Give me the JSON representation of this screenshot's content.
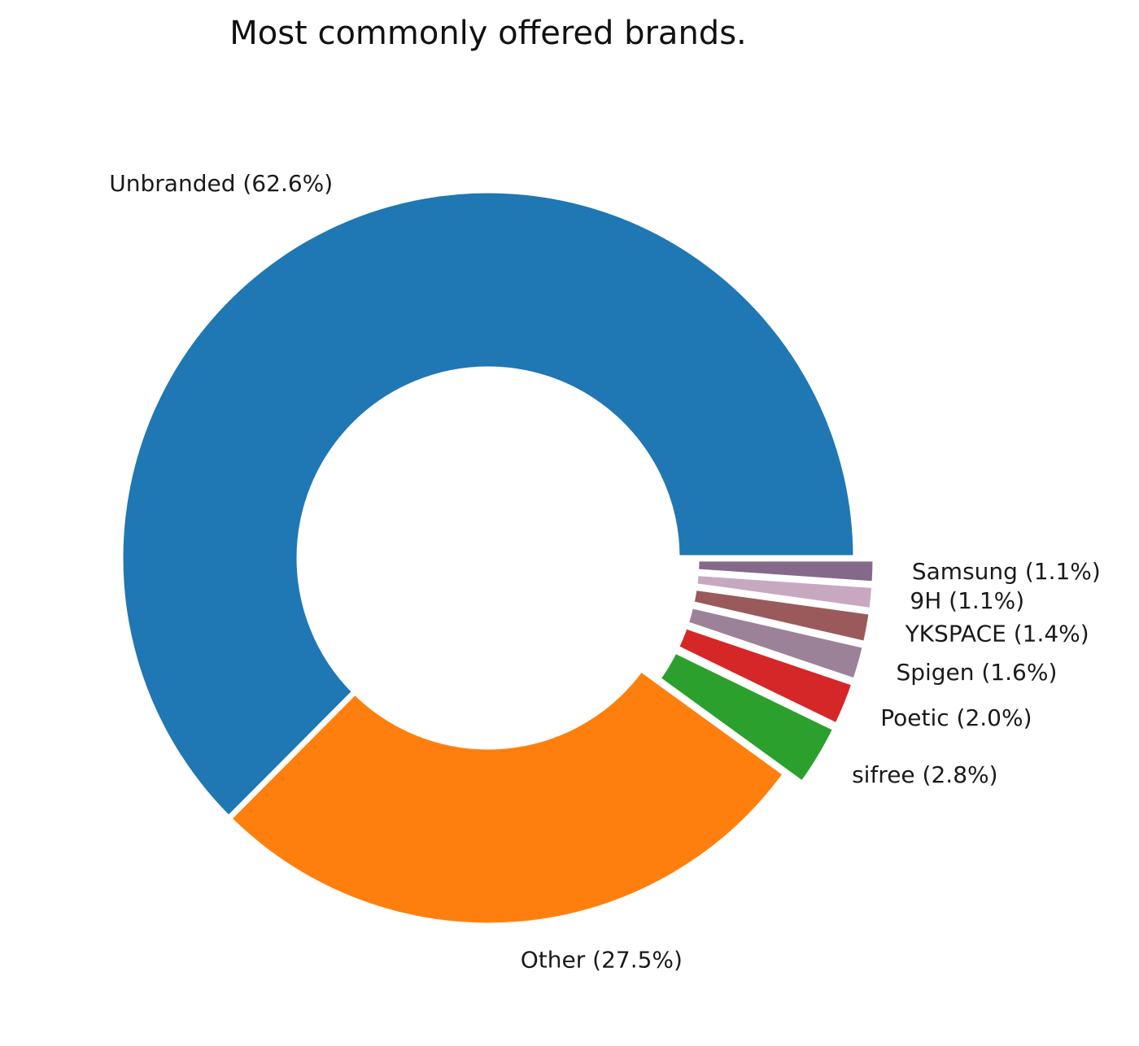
{
  "chart_data": {
    "type": "pie",
    "style": "donut",
    "title": "Most commonly offered brands.",
    "start_angle_deg": 0,
    "direction": "counterclockwise",
    "slices": [
      {
        "label": "Unbranded",
        "value": 62.6,
        "display": "Unbranded (62.6%)",
        "color": "#1f77b4",
        "exploded": false
      },
      {
        "label": "Other",
        "value": 27.5,
        "display": "Other (27.5%)",
        "color": "#ff7f0e",
        "exploded": false
      },
      {
        "label": "sifree",
        "value": 2.8,
        "display": "sifree (2.8%)",
        "color": "#2ca02c",
        "exploded": true
      },
      {
        "label": "Poetic",
        "value": 2.0,
        "display": "Poetic (2.0%)",
        "color": "#d62728",
        "exploded": true
      },
      {
        "label": "Spigen",
        "value": 1.6,
        "display": "Spigen (1.6%)",
        "color": "#9b8299",
        "exploded": true
      },
      {
        "label": "YKSPACE",
        "value": 1.4,
        "display": "YKSPACE (1.4%)",
        "color": "#9a5a5c",
        "exploded": true
      },
      {
        "label": "9H",
        "value": 1.1,
        "display": "9H (1.1%)",
        "color": "#c8a8c1",
        "exploded": true
      },
      {
        "label": "Samsung",
        "value": 1.1,
        "display": "Samsung (1.1%)",
        "color": "#85698a",
        "exploded": true
      }
    ]
  }
}
